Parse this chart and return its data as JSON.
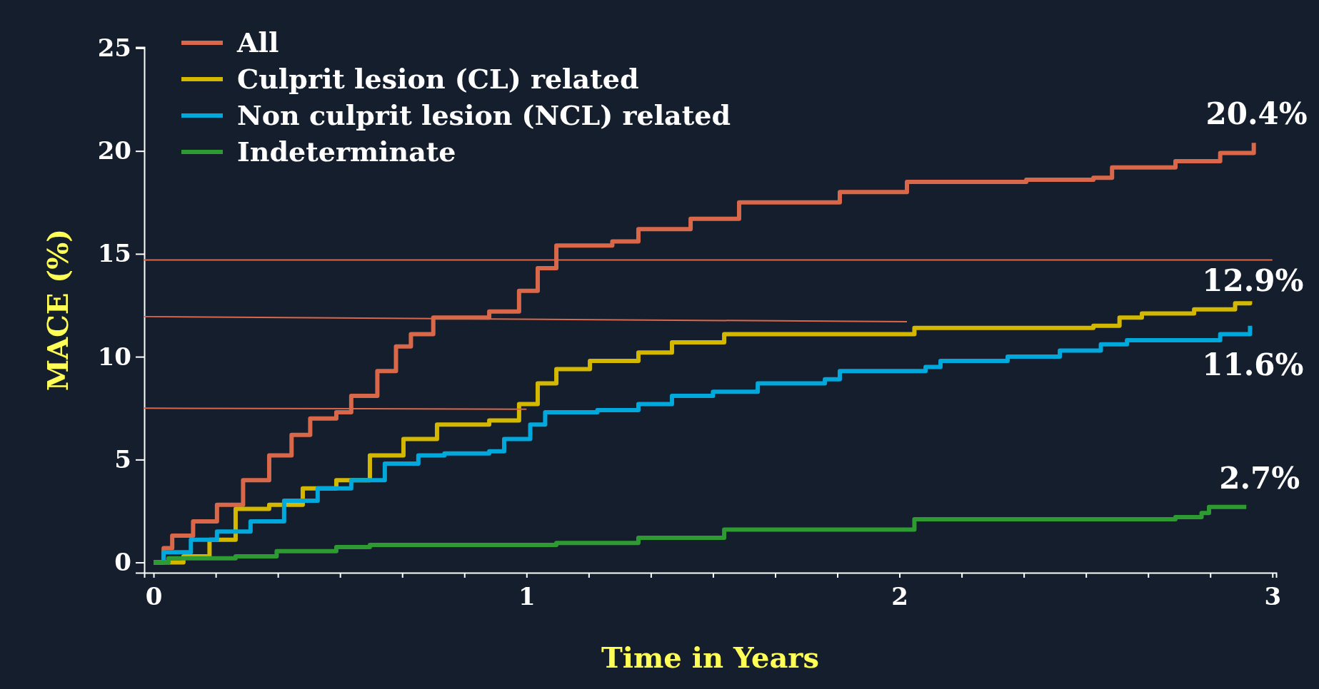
{
  "chart_data": {
    "type": "step",
    "xlabel": "Time in Years",
    "ylabel": "MACE (%)",
    "xlim": [
      -0.025,
      3.01
    ],
    "ylim": [
      -0.5,
      25.05
    ],
    "xticks": [
      0,
      {
        "value": 0.1667,
        "label": null
      },
      {
        "value": 0.3333,
        "label": null
      },
      {
        "value": 0.5,
        "label": null
      },
      {
        "value": 0.6667,
        "label": null
      },
      {
        "value": 0.8333,
        "label": null
      },
      1,
      {
        "value": 1.1667,
        "label": null
      },
      {
        "value": 1.3333,
        "label": null
      },
      {
        "value": 1.5,
        "label": null
      },
      {
        "value": 1.6667,
        "label": null
      },
      {
        "value": 1.8333,
        "label": null
      },
      2,
      {
        "value": 2.1667,
        "label": null
      },
      {
        "value": 2.3333,
        "label": null
      },
      {
        "value": 2.5,
        "label": null
      },
      {
        "value": 2.6667,
        "label": null
      },
      {
        "value": 2.8333,
        "label": null
      },
      3
    ],
    "yticks": [
      0,
      5,
      10,
      15,
      20,
      25
    ],
    "grid": false,
    "legend": "top left",
    "series": [
      {
        "name": "All",
        "color": "#d9684a",
        "x": [
          0,
          0.027,
          0.05,
          0.106,
          0.17,
          0.24,
          0.31,
          0.37,
          0.42,
          0.49,
          0.53,
          0.6,
          0.65,
          0.69,
          0.75,
          0.9,
          0.98,
          1.03,
          1.08,
          1.23,
          1.3,
          1.44,
          1.57,
          1.75,
          1.84,
          2.0,
          2.02,
          2.34,
          2.52,
          2.57,
          2.74,
          2.86,
          2.95
        ],
        "values": [
          0,
          0.7,
          1.3,
          2,
          2.8,
          4,
          5.2,
          6.2,
          7,
          7.3,
          8.1,
          9.3,
          10.5,
          11.1,
          11.9,
          12.2,
          13.2,
          14.3,
          15.4,
          15.6,
          16.2,
          16.7,
          17.5,
          17.5,
          18,
          18,
          18.5,
          18.6,
          18.7,
          19.2,
          19.5,
          19.9,
          20.4
        ]
      },
      {
        "name": "Culprit lesion (CL) related",
        "color": "#d4b800",
        "x": [
          0,
          0.08,
          0.15,
          0.22,
          0.31,
          0.4,
          0.49,
          0.58,
          0.67,
          0.76,
          0.9,
          0.98,
          1.03,
          1.08,
          1.17,
          1.3,
          1.39,
          1.53,
          2.0,
          2.04,
          2.52,
          2.59,
          2.65,
          2.79,
          2.9,
          2.94
        ],
        "values": [
          0,
          0.3,
          1.1,
          2.6,
          2.8,
          3.6,
          4,
          5.2,
          6,
          6.7,
          6.9,
          7.7,
          8.7,
          9.4,
          9.8,
          10.2,
          10.7,
          11.1,
          11.1,
          11.4,
          11.5,
          11.9,
          12.1,
          12.3,
          12.6,
          12.7
        ]
      },
      {
        "name": "Non culprit lesion (NCL) related",
        "color": "#00a8dc",
        "x": [
          0,
          0.027,
          0.1,
          0.17,
          0.26,
          0.35,
          0.44,
          0.53,
          0.62,
          0.71,
          0.78,
          0.9,
          0.94,
          1.01,
          1.05,
          1.19,
          1.3,
          1.39,
          1.5,
          1.62,
          1.8,
          1.84,
          2.07,
          2.11,
          2.29,
          2.43,
          2.54,
          2.61,
          2.81,
          2.86,
          2.94
        ],
        "values": [
          0,
          0.5,
          1.1,
          1.5,
          2,
          3,
          3.6,
          4,
          4.8,
          5.2,
          5.3,
          5.4,
          6,
          6.7,
          7.3,
          7.4,
          7.7,
          8.1,
          8.3,
          8.7,
          8.9,
          9.3,
          9.5,
          9.8,
          10,
          10.3,
          10.6,
          10.8,
          10.8,
          11.1,
          11.5
        ]
      },
      {
        "name": "Indeterminate",
        "color": "#2e9a32",
        "x": [
          0,
          0.04,
          0.22,
          0.33,
          0.49,
          0.58,
          1.08,
          1.3,
          1.53,
          2.0,
          2.04,
          2.74,
          2.81,
          2.83,
          2.93
        ],
        "values": [
          0,
          0.2,
          0.3,
          0.55,
          0.75,
          0.85,
          0.95,
          1.2,
          1.6,
          1.6,
          2.1,
          2.2,
          2.4,
          2.7,
          2.7
        ]
      },
      {
        "type": "line",
        "color": "#d9684a",
        "x": [
          -0.025,
          3.0
        ],
        "values": [
          14.7,
          14.7
        ]
      },
      {
        "type": "line",
        "color": "#d9684a",
        "x": [
          -0.025,
          2.02
        ],
        "values": [
          11.95,
          11.7
        ]
      },
      {
        "type": "line",
        "color": "#d9684a",
        "x": [
          -0.025,
          1.0
        ],
        "values": [
          7.5,
          7.45
        ]
      }
    ],
    "annotations": [
      {
        "text": "20.4%",
        "x": 2.95,
        "y": 20.4
      },
      {
        "text": "12.9%",
        "x": 2.94,
        "y": 12.7
      },
      {
        "text": "11.6%",
        "x": 2.94,
        "y": 11.6
      },
      {
        "text": "2.7%",
        "x": 2.93,
        "y": 2.7
      }
    ]
  }
}
